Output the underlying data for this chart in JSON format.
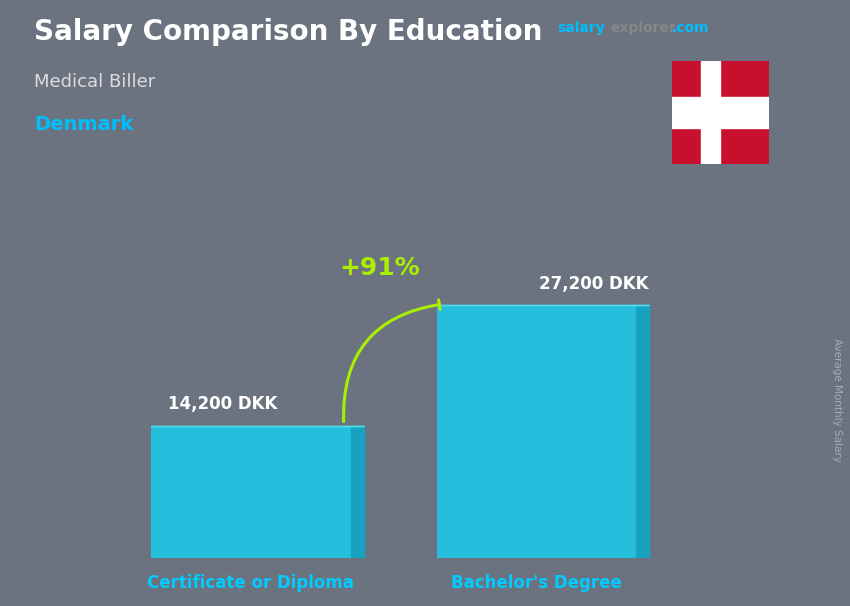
{
  "title": "Salary Comparison By Education",
  "subtitle": "Medical Biller",
  "country": "Denmark",
  "categories": [
    "Certificate or Diploma",
    "Bachelor's Degree"
  ],
  "values": [
    14200,
    27200
  ],
  "value_labels": [
    "14,200 DKK",
    "27,200 DKK"
  ],
  "pct_change": "+91%",
  "bar_color_face": "#1EC8E8",
  "bar_color_right": "#0FA8C8",
  "bar_color_top": "#55DDEE",
  "ylabel": "Average Monthly Salary",
  "bg_color": "#6b7280",
  "title_color": "#ffffff",
  "subtitle_color": "#dddddd",
  "country_color": "#00BFFF",
  "arrow_color": "#aaee00",
  "pct_color": "#aaee00",
  "value_label_color": "#ffffff",
  "cat_label_color": "#00CCFF",
  "salary_color": "#00BFFF",
  "explorer_color": "#888888",
  "com_color": "#00BFFF",
  "ylabel_color": "#aaaaaa",
  "ylim_max": 34000,
  "bar_positions": [
    0.28,
    0.68
  ],
  "bar_width": 0.28,
  "figsize": [
    8.5,
    6.06
  ],
  "dpi": 100
}
